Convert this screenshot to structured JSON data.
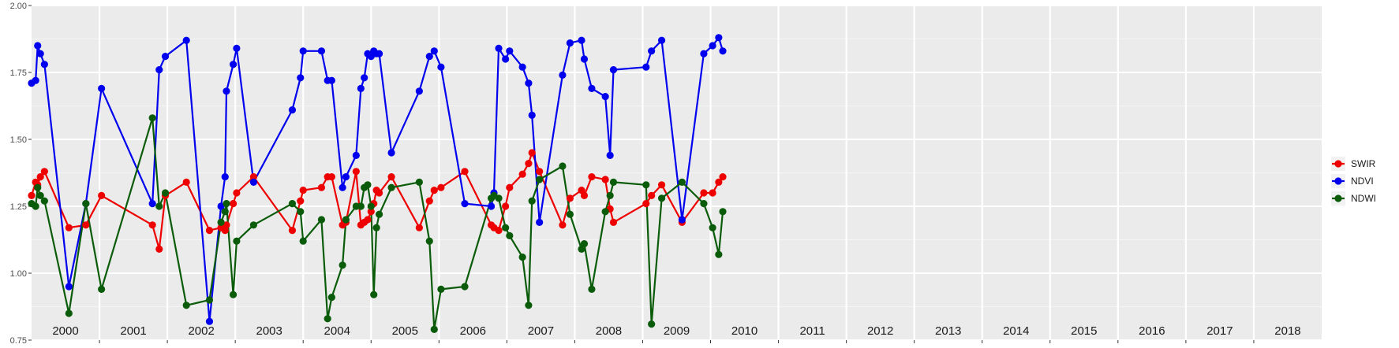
{
  "chart_data": {
    "type": "line",
    "title": "",
    "xlabel": "",
    "ylabel": "",
    "xlim": [
      2000.0,
      2019.0
    ],
    "ylim": [
      0.75,
      2.0
    ],
    "y_ticks": [
      "0.75",
      "1.00",
      "1.25",
      "1.50",
      "1.75",
      "2.00"
    ],
    "grid": true,
    "legend_position": "right",
    "year_labels": [
      "2000",
      "2001",
      "2002",
      "2003",
      "2004",
      "2005",
      "2006",
      "2007",
      "2008",
      "2009",
      "2010",
      "2011",
      "2012",
      "2013",
      "2014",
      "2015",
      "2016",
      "2017",
      "2018"
    ],
    "series": [
      {
        "name": "SWIR",
        "color": "#ee0000",
        "x": [
          2000.0,
          2000.06,
          2000.09,
          2000.13,
          2000.19,
          2000.55,
          2000.8,
          2001.03,
          2001.78,
          2001.88,
          2001.97,
          2002.28,
          2002.62,
          2002.79,
          2002.85,
          2002.87,
          2002.97,
          2003.02,
          2003.27,
          2003.84,
          2003.96,
          2004.0,
          2004.27,
          2004.36,
          2004.42,
          2004.58,
          2004.63,
          2004.78,
          2004.85,
          2004.9,
          2004.95,
          2005.0,
          2005.04,
          2005.08,
          2005.12,
          2005.3,
          2005.71,
          2005.86,
          2005.93,
          2006.03,
          2006.38,
          2006.77,
          2006.81,
          2006.88,
          2006.98,
          2007.04,
          2007.23,
          2007.32,
          2007.37,
          2007.48,
          2007.82,
          2007.93,
          2008.1,
          2008.14,
          2008.25,
          2008.45,
          2008.52,
          2008.57,
          2009.05,
          2009.13,
          2009.28,
          2009.58,
          2009.9,
          2010.03,
          2010.12,
          2010.18
        ],
        "y": [
          1.29,
          1.34,
          1.33,
          1.36,
          1.38,
          1.17,
          1.18,
          1.29,
          1.18,
          1.09,
          1.29,
          1.34,
          1.16,
          1.17,
          1.16,
          1.18,
          1.26,
          1.3,
          1.36,
          1.16,
          1.27,
          1.31,
          1.32,
          1.36,
          1.36,
          1.18,
          1.19,
          1.38,
          1.18,
          1.19,
          1.2,
          1.23,
          1.26,
          1.31,
          1.3,
          1.36,
          1.17,
          1.27,
          1.31,
          1.32,
          1.38,
          1.18,
          1.17,
          1.16,
          1.25,
          1.32,
          1.37,
          1.41,
          1.45,
          1.38,
          1.18,
          1.28,
          1.31,
          1.29,
          1.36,
          1.35,
          1.24,
          1.19,
          1.26,
          1.29,
          1.33,
          1.19,
          1.3,
          1.3,
          1.34,
          1.36
        ]
      },
      {
        "name": "NDVI",
        "color": "#0000ee",
        "x": [
          2000.0,
          2000.06,
          2000.09,
          2000.13,
          2000.19,
          2000.55,
          2000.8,
          2001.03,
          2001.78,
          2001.88,
          2001.97,
          2002.28,
          2002.62,
          2002.79,
          2002.85,
          2002.87,
          2002.97,
          2003.02,
          2003.27,
          2003.84,
          2003.96,
          2004.0,
          2004.27,
          2004.36,
          2004.42,
          2004.58,
          2004.63,
          2004.78,
          2004.85,
          2004.9,
          2004.95,
          2005.0,
          2005.04,
          2005.08,
          2005.12,
          2005.3,
          2005.71,
          2005.86,
          2005.93,
          2006.03,
          2006.38,
          2006.77,
          2006.81,
          2006.88,
          2006.98,
          2007.04,
          2007.23,
          2007.32,
          2007.37,
          2007.48,
          2007.82,
          2007.93,
          2008.1,
          2008.14,
          2008.25,
          2008.45,
          2008.52,
          2008.57,
          2009.05,
          2009.13,
          2009.28,
          2009.58,
          2009.9,
          2010.03,
          2010.12,
          2010.18
        ],
        "y": [
          1.71,
          1.72,
          1.85,
          1.82,
          1.78,
          0.95,
          1.26,
          1.69,
          1.26,
          1.76,
          1.81,
          1.87,
          0.82,
          1.25,
          1.36,
          1.68,
          1.78,
          1.84,
          1.34,
          1.61,
          1.73,
          1.83,
          1.83,
          1.72,
          1.72,
          1.32,
          1.36,
          1.44,
          1.69,
          1.73,
          1.82,
          1.81,
          1.83,
          1.82,
          1.82,
          1.45,
          1.68,
          1.81,
          1.83,
          1.77,
          1.26,
          1.25,
          1.3,
          1.84,
          1.8,
          1.83,
          1.77,
          1.71,
          1.59,
          1.19,
          1.74,
          1.86,
          1.87,
          1.8,
          1.69,
          1.66,
          1.44,
          1.76,
          1.77,
          1.83,
          1.87,
          1.2,
          1.82,
          1.85,
          1.88,
          1.83
        ]
      },
      {
        "name": "NDWI",
        "color": "#0a5c0a",
        "x": [
          2000.0,
          2000.06,
          2000.09,
          2000.13,
          2000.19,
          2000.55,
          2000.8,
          2001.03,
          2001.78,
          2001.88,
          2001.97,
          2002.28,
          2002.62,
          2002.79,
          2002.85,
          2002.87,
          2002.97,
          2003.02,
          2003.27,
          2003.84,
          2003.96,
          2004.0,
          2004.27,
          2004.36,
          2004.42,
          2004.58,
          2004.63,
          2004.78,
          2004.85,
          2004.9,
          2004.95,
          2005.0,
          2005.04,
          2005.08,
          2005.12,
          2005.3,
          2005.71,
          2005.86,
          2005.93,
          2006.03,
          2006.38,
          2006.77,
          2006.81,
          2006.88,
          2006.98,
          2007.04,
          2007.23,
          2007.32,
          2007.37,
          2007.48,
          2007.82,
          2007.93,
          2008.1,
          2008.14,
          2008.25,
          2008.45,
          2008.52,
          2008.57,
          2009.05,
          2009.13,
          2009.28,
          2009.58,
          2009.9,
          2010.03,
          2010.12,
          2010.18
        ],
        "y": [
          1.26,
          1.25,
          1.32,
          1.29,
          1.27,
          0.85,
          1.26,
          0.94,
          1.58,
          1.25,
          1.3,
          0.88,
          0.9,
          1.19,
          1.23,
          1.26,
          0.92,
          1.12,
          1.18,
          1.26,
          1.23,
          1.12,
          1.2,
          0.83,
          0.91,
          1.03,
          1.2,
          1.25,
          1.25,
          1.32,
          1.33,
          1.25,
          0.92,
          1.17,
          1.22,
          1.32,
          1.34,
          1.12,
          0.79,
          0.94,
          0.95,
          1.28,
          1.29,
          1.28,
          1.17,
          1.14,
          1.06,
          0.88,
          1.27,
          1.35,
          1.4,
          1.22,
          1.09,
          1.11,
          0.94,
          1.23,
          1.29,
          1.34,
          1.33,
          0.81,
          1.28,
          1.34,
          1.26,
          1.17,
          1.07,
          1.23
        ]
      }
    ]
  }
}
